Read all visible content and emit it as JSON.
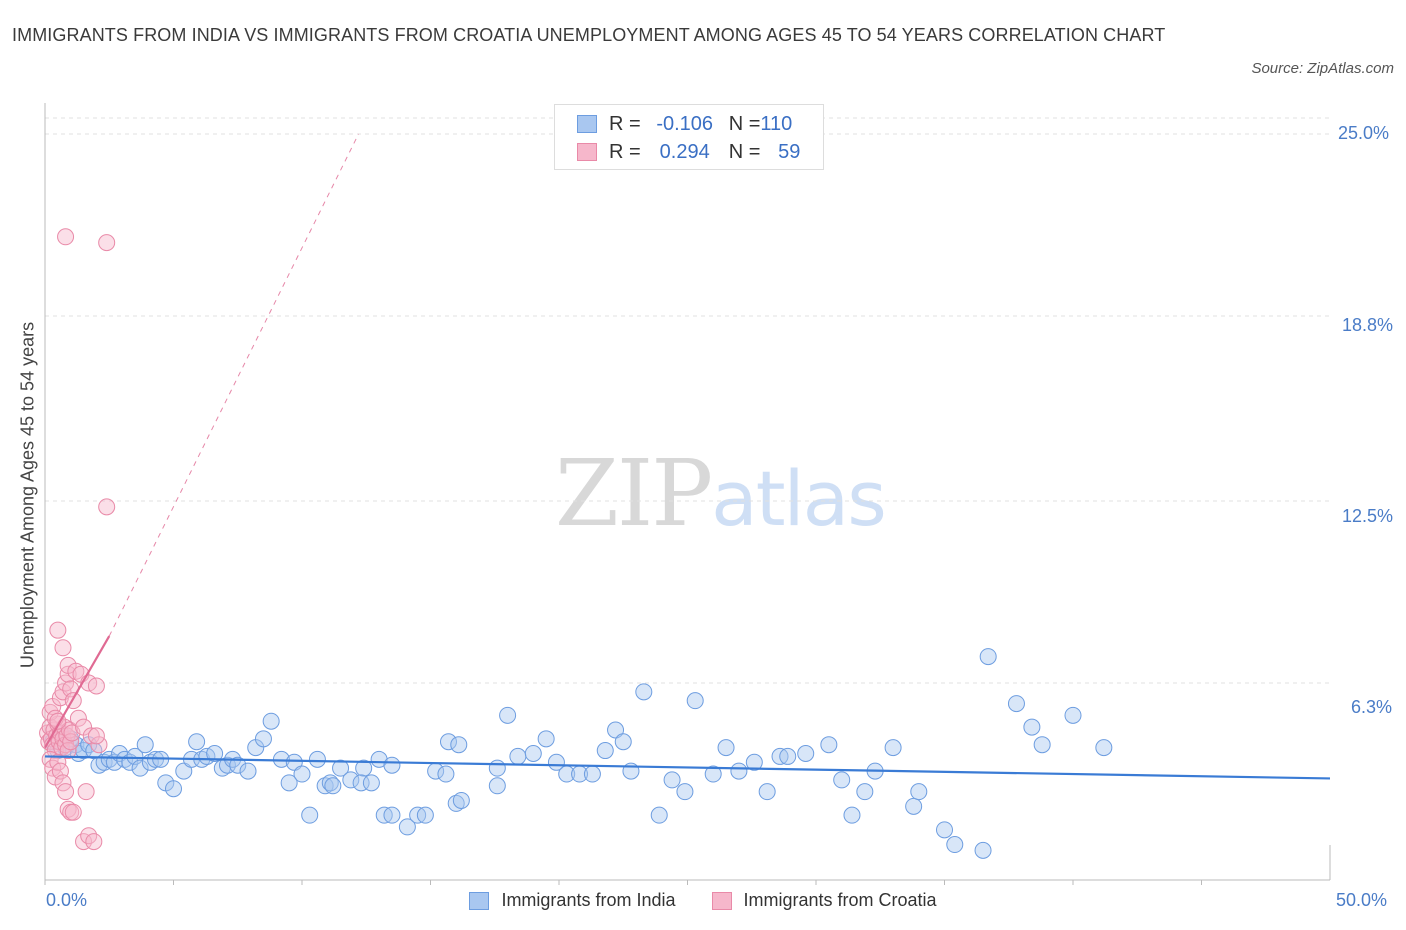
{
  "title": "IMMIGRANTS FROM INDIA VS IMMIGRANTS FROM CROATIA UNEMPLOYMENT AMONG AGES 45 TO 54 YEARS CORRELATION CHART",
  "source": "Source: ZipAtlas.com",
  "watermark": {
    "zip": "ZIP",
    "atlas": "atlas"
  },
  "legend": {
    "india": {
      "r_label": "R = ",
      "r_value": "-0.106",
      "n_label": "N = ",
      "n_value": "110"
    },
    "croatia": {
      "r_label": "R = ",
      "r_value": "0.294",
      "n_label": "N = ",
      "n_value": "59"
    }
  },
  "colors": {
    "india_fill": "#a9c7f0",
    "india_stroke": "#6d9de0",
    "india_line": "#3a7bd5",
    "croatia_fill": "#f6b7cb",
    "croatia_stroke": "#e98aa8",
    "croatia_line": "#e06a93",
    "grid": "#e0e0e0",
    "axis_label": "#4a7cc7"
  },
  "chart_data": {
    "type": "scatter",
    "title": "IMMIGRANTS FROM INDIA VS IMMIGRANTS FROM CROATIA UNEMPLOYMENT AMONG AGES 45 TO 54 YEARS CORRELATION CHART",
    "xlabel": "",
    "ylabel": "Unemployment Among Ages 45 to 54 years",
    "xlim": [
      0,
      50
    ],
    "ylim": [
      0,
      25
    ],
    "x_tick_labels": [
      "0.0%",
      "50.0%"
    ],
    "y_ticks": [
      6.3,
      12.5,
      18.8,
      25.0
    ],
    "y_tick_labels": [
      "6.3%",
      "12.5%",
      "18.8%",
      "25.0%"
    ],
    "grid": true,
    "legend_position": "bottom",
    "series": [
      {
        "name": "Immigrants from India",
        "trend": {
          "x": [
            0,
            50
          ],
          "y": [
            3.8,
            3.05
          ],
          "style": "solid"
        },
        "points": [
          [
            0.3,
            4.3
          ],
          [
            0.5,
            4.0
          ],
          [
            0.6,
            4.6
          ],
          [
            0.8,
            4.1
          ],
          [
            1.0,
            4.4
          ],
          [
            1.2,
            4.2
          ],
          [
            1.3,
            3.9
          ],
          [
            1.5,
            4.0
          ],
          [
            1.7,
            4.2
          ],
          [
            1.9,
            4.0
          ],
          [
            2.1,
            3.5
          ],
          [
            2.3,
            3.6
          ],
          [
            2.5,
            3.7
          ],
          [
            2.7,
            3.6
          ],
          [
            2.9,
            3.9
          ],
          [
            3.1,
            3.7
          ],
          [
            3.3,
            3.6
          ],
          [
            3.5,
            3.8
          ],
          [
            3.7,
            3.4
          ],
          [
            3.9,
            4.2
          ],
          [
            4.1,
            3.6
          ],
          [
            4.3,
            3.7
          ],
          [
            4.5,
            3.7
          ],
          [
            4.7,
            2.9
          ],
          [
            5.0,
            2.7
          ],
          [
            5.4,
            3.3
          ],
          [
            5.7,
            3.7
          ],
          [
            5.9,
            4.3
          ],
          [
            6.1,
            3.7
          ],
          [
            6.3,
            3.8
          ],
          [
            6.6,
            3.9
          ],
          [
            6.9,
            3.4
          ],
          [
            7.1,
            3.5
          ],
          [
            7.3,
            3.7
          ],
          [
            7.5,
            3.5
          ],
          [
            7.9,
            3.3
          ],
          [
            8.2,
            4.1
          ],
          [
            8.5,
            4.4
          ],
          [
            8.8,
            5.0
          ],
          [
            9.2,
            3.7
          ],
          [
            9.5,
            2.9
          ],
          [
            9.7,
            3.6
          ],
          [
            10.0,
            3.2
          ],
          [
            10.3,
            1.8
          ],
          [
            10.6,
            3.7
          ],
          [
            10.9,
            2.8
          ],
          [
            11.1,
            2.9
          ],
          [
            11.2,
            2.8
          ],
          [
            11.5,
            3.4
          ],
          [
            11.9,
            3.0
          ],
          [
            12.4,
            3.4
          ],
          [
            12.3,
            2.9
          ],
          [
            12.7,
            2.9
          ],
          [
            13.0,
            3.7
          ],
          [
            13.2,
            1.8
          ],
          [
            13.5,
            3.5
          ],
          [
            13.5,
            1.8
          ],
          [
            14.1,
            1.4
          ],
          [
            14.5,
            1.8
          ],
          [
            14.8,
            1.8
          ],
          [
            15.2,
            3.3
          ],
          [
            15.6,
            3.2
          ],
          [
            15.7,
            4.3
          ],
          [
            16.1,
            4.2
          ],
          [
            16.0,
            2.2
          ],
          [
            16.2,
            2.3
          ],
          [
            17.6,
            2.8
          ],
          [
            17.6,
            3.4
          ],
          [
            18.0,
            5.2
          ],
          [
            18.4,
            3.8
          ],
          [
            19.0,
            3.9
          ],
          [
            19.5,
            4.4
          ],
          [
            19.9,
            3.6
          ],
          [
            20.3,
            3.2
          ],
          [
            20.8,
            3.2
          ],
          [
            21.3,
            3.2
          ],
          [
            21.8,
            4.0
          ],
          [
            22.2,
            4.7
          ],
          [
            22.5,
            4.3
          ],
          [
            22.8,
            3.3
          ],
          [
            23.3,
            6.0
          ],
          [
            23.9,
            1.8
          ],
          [
            24.4,
            3.0
          ],
          [
            24.9,
            2.6
          ],
          [
            25.3,
            5.7
          ],
          [
            26.0,
            3.2
          ],
          [
            26.5,
            4.1
          ],
          [
            27.0,
            3.3
          ],
          [
            27.6,
            3.6
          ],
          [
            28.1,
            2.6
          ],
          [
            28.6,
            3.8
          ],
          [
            28.9,
            3.8
          ],
          [
            29.6,
            3.9
          ],
          [
            30.5,
            4.2
          ],
          [
            31.0,
            3.0
          ],
          [
            31.4,
            1.8
          ],
          [
            31.9,
            2.6
          ],
          [
            32.3,
            3.3
          ],
          [
            33.0,
            4.1
          ],
          [
            33.8,
            2.1
          ],
          [
            34.0,
            2.6
          ],
          [
            35.0,
            1.3
          ],
          [
            35.4,
            0.8
          ],
          [
            36.5,
            0.6
          ],
          [
            36.7,
            7.2
          ],
          [
            37.8,
            5.6
          ],
          [
            38.4,
            4.8
          ],
          [
            38.8,
            4.2
          ],
          [
            40.0,
            5.2
          ],
          [
            41.2,
            4.1
          ]
        ]
      },
      {
        "name": "Immigrants from Croatia",
        "trend": {
          "x": [
            0,
            2.5
          ],
          "y": [
            4.1,
            7.9
          ],
          "style": "solid",
          "extended": {
            "x": [
              2.5,
              12.2
            ],
            "y": [
              7.9,
              25.0
            ],
            "style": "dashed"
          }
        },
        "points": [
          [
            0.1,
            4.6
          ],
          [
            0.15,
            4.3
          ],
          [
            0.2,
            4.8
          ],
          [
            0.25,
            4.4
          ],
          [
            0.3,
            4.2
          ],
          [
            0.35,
            4.7
          ],
          [
            0.4,
            4.0
          ],
          [
            0.45,
            4.5
          ],
          [
            0.5,
            4.9
          ],
          [
            0.55,
            4.3
          ],
          [
            0.6,
            4.6
          ],
          [
            0.65,
            4.1
          ],
          [
            0.7,
            4.4
          ],
          [
            0.75,
            4.8
          ],
          [
            0.8,
            4.2
          ],
          [
            0.85,
            4.5
          ],
          [
            0.9,
            4.0
          ],
          [
            0.95,
            4.7
          ],
          [
            1.0,
            4.3
          ],
          [
            1.05,
            4.6
          ],
          [
            0.2,
            5.3
          ],
          [
            0.3,
            5.5
          ],
          [
            0.4,
            5.1
          ],
          [
            0.5,
            5.0
          ],
          [
            0.6,
            5.8
          ],
          [
            0.7,
            6.0
          ],
          [
            0.8,
            6.3
          ],
          [
            0.9,
            6.6
          ],
          [
            1.0,
            6.1
          ],
          [
            1.1,
            5.7
          ],
          [
            0.2,
            3.7
          ],
          [
            0.3,
            3.4
          ],
          [
            0.4,
            3.1
          ],
          [
            0.5,
            3.6
          ],
          [
            0.6,
            3.3
          ],
          [
            0.7,
            2.9
          ],
          [
            0.8,
            2.6
          ],
          [
            0.9,
            2.0
          ],
          [
            1.0,
            1.9
          ],
          [
            1.1,
            1.9
          ],
          [
            0.5,
            8.1
          ],
          [
            0.7,
            7.5
          ],
          [
            0.9,
            6.9
          ],
          [
            1.2,
            6.7
          ],
          [
            1.4,
            6.6
          ],
          [
            1.7,
            6.3
          ],
          [
            2.0,
            6.2
          ],
          [
            1.3,
            5.1
          ],
          [
            1.5,
            4.8
          ],
          [
            1.8,
            4.5
          ],
          [
            2.1,
            4.2
          ],
          [
            2.0,
            4.5
          ],
          [
            1.5,
            0.9
          ],
          [
            1.7,
            1.1
          ],
          [
            1.9,
            0.9
          ],
          [
            0.8,
            21.5
          ],
          [
            2.4,
            21.3
          ],
          [
            2.4,
            12.3
          ],
          [
            1.6,
            2.6
          ]
        ]
      }
    ]
  }
}
